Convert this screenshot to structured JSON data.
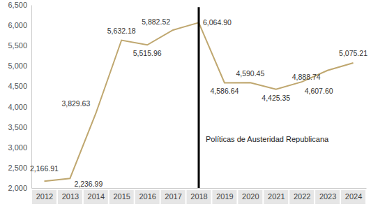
{
  "chart_data": {
    "type": "line",
    "categories": [
      "2012",
      "2013",
      "2014",
      "2015",
      "2016",
      "2017",
      "2018",
      "2019",
      "2020",
      "2021",
      "2022",
      "2023",
      "2024"
    ],
    "values": [
      2166.91,
      2236.99,
      3829.63,
      5632.18,
      5515.96,
      5882.52,
      6064.9,
      4586.64,
      4590.45,
      4425.35,
      4607.6,
      4888.74,
      5075.21
    ],
    "value_labels": [
      "2,166.91",
      "2,236.99",
      "3,829.63",
      "5,632.18",
      "5,515.96",
      "5,882.52",
      "6,064.90",
      "4,586.64",
      "4,590.45",
      "4,425.35",
      "4,607.60",
      "4,888.74",
      "5,075.21"
    ],
    "color": "#bfa76f",
    "ylim": [
      2000,
      6500
    ],
    "yticks": [
      {
        "value": 2000,
        "label": "2,000"
      },
      {
        "value": 2500,
        "label": "2,500"
      },
      {
        "value": 3000,
        "label": "3,000"
      },
      {
        "value": 3500,
        "label": "3,500"
      },
      {
        "value": 4000,
        "label": "4,000"
      },
      {
        "value": 4500,
        "label": "4,500"
      },
      {
        "value": 5000,
        "label": "5,000"
      },
      {
        "value": 5500,
        "label": "5,500"
      },
      {
        "value": 6000,
        "label": "6,000"
      },
      {
        "value": 6500,
        "label": "6,500"
      }
    ],
    "grid": false,
    "data_labels": true,
    "annotations": [
      {
        "x": "2018",
        "text": "Políticas de Austeridad Republicana"
      }
    ]
  }
}
